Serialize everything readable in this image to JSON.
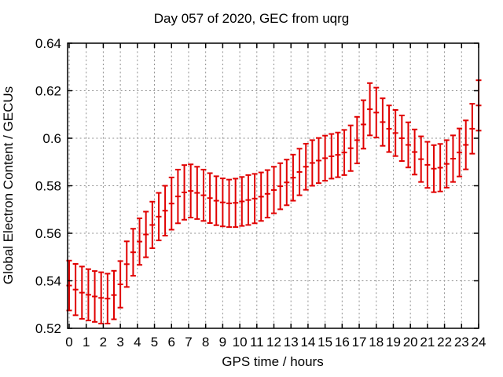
{
  "title": "Day 057 of 2020, GEC from uqrg",
  "colors": {
    "background": "#ffffff",
    "plot_border": "#000000",
    "grid": "#8f8f8f",
    "series": "#e00000",
    "text": "#000000"
  },
  "chart_data": {
    "type": "scatter",
    "subtype": "errorbars",
    "title": "Day 057 of 2020, GEC from uqrg",
    "xlabel": "GPS time / hours",
    "ylabel": "Global Electron Content / GECUs",
    "xlim": [
      0,
      24
    ],
    "ylim": [
      0.52,
      0.64
    ],
    "grid": true,
    "legend": "none",
    "xticks": [
      0,
      1,
      2,
      3,
      4,
      5,
      6,
      7,
      8,
      9,
      10,
      11,
      12,
      13,
      14,
      15,
      16,
      17,
      18,
      19,
      20,
      21,
      22,
      23,
      24
    ],
    "yticks": [
      {
        "v": 0.52,
        "label": "0.52"
      },
      {
        "v": 0.54,
        "label": "0.54"
      },
      {
        "v": 0.56,
        "label": "0.56"
      },
      {
        "v": 0.58,
        "label": "0.58"
      },
      {
        "v": 0.6,
        "label": "0.6"
      },
      {
        "v": 0.62,
        "label": "0.62"
      },
      {
        "v": 0.64,
        "label": "0.64"
      }
    ],
    "series": [
      {
        "name": "GEC",
        "color": "#e00000",
        "x": [
          0,
          0.375,
          0.75,
          1.125,
          1.5,
          1.875,
          2.25,
          2.625,
          3,
          3.375,
          3.75,
          4.125,
          4.5,
          4.875,
          5.25,
          5.625,
          6,
          6.375,
          6.75,
          7.125,
          7.5,
          7.875,
          8.25,
          8.625,
          9,
          9.375,
          9.75,
          10.125,
          10.5,
          10.875,
          11.25,
          11.625,
          12,
          12.375,
          12.75,
          13.125,
          13.5,
          13.875,
          14.25,
          14.625,
          15,
          15.375,
          15.75,
          16.125,
          16.5,
          16.875,
          17.25,
          17.625,
          18,
          18.375,
          18.75,
          19.125,
          19.5,
          19.875,
          20.25,
          20.625,
          21,
          21.375,
          21.75,
          22.125,
          22.5,
          22.875,
          23.25,
          23.625,
          24
        ],
        "y": [
          0.538,
          0.5363,
          0.535,
          0.5341,
          0.5334,
          0.5328,
          0.5325,
          0.534,
          0.5385,
          0.547,
          0.552,
          0.5565,
          0.5595,
          0.5635,
          0.567,
          0.5695,
          0.5725,
          0.5755,
          0.5772,
          0.5778,
          0.577,
          0.576,
          0.5748,
          0.5737,
          0.573,
          0.5726,
          0.5728,
          0.5734,
          0.574,
          0.5746,
          0.5754,
          0.5766,
          0.5782,
          0.5798,
          0.5814,
          0.5834,
          0.5858,
          0.588,
          0.5896,
          0.5906,
          0.5916,
          0.5924,
          0.593,
          0.594,
          0.5958,
          0.5992,
          0.6058,
          0.6122,
          0.6108,
          0.6068,
          0.604,
          0.6022,
          0.6,
          0.5972,
          0.5942,
          0.5912,
          0.5888,
          0.5872,
          0.5876,
          0.5892,
          0.5914,
          0.594,
          0.5972,
          0.604,
          0.6138
        ],
        "yerr": [
          0.0105,
          0.0108,
          0.011,
          0.0108,
          0.0107,
          0.0108,
          0.0105,
          0.0102,
          0.0098,
          0.0096,
          0.0099,
          0.0098,
          0.0096,
          0.0098,
          0.01,
          0.0105,
          0.011,
          0.0113,
          0.0115,
          0.0112,
          0.011,
          0.0108,
          0.0105,
          0.0103,
          0.0101,
          0.01,
          0.0102,
          0.0103,
          0.0105,
          0.0104,
          0.0102,
          0.01,
          0.0098,
          0.0097,
          0.0096,
          0.0097,
          0.0098,
          0.0097,
          0.0096,
          0.0095,
          0.0095,
          0.0094,
          0.0094,
          0.0095,
          0.0096,
          0.0098,
          0.0102,
          0.011,
          0.0105,
          0.01,
          0.0098,
          0.0097,
          0.0096,
          0.0095,
          0.0095,
          0.0096,
          0.0097,
          0.0099,
          0.01,
          0.01,
          0.0098,
          0.0101,
          0.0103,
          0.0105,
          0.0106
        ]
      }
    ]
  }
}
